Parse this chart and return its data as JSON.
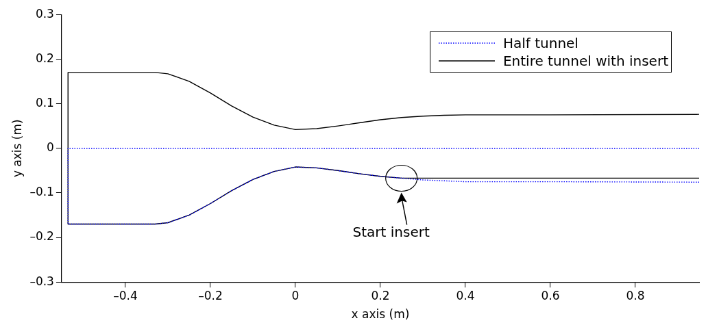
{
  "chart_data": {
    "type": "line",
    "xlabel": "x axis (m)",
    "ylabel": "y axis (m)",
    "xlim": [
      -0.55,
      0.95
    ],
    "ylim": [
      -0.3,
      0.3
    ],
    "xticks": [
      {
        "value": -0.4,
        "label": "–0.4"
      },
      {
        "value": -0.2,
        "label": "–0.2"
      },
      0,
      0.2,
      0.4,
      0.6,
      0.8
    ],
    "yticks": [
      {
        "value": -0.3,
        "label": "–0.3"
      },
      {
        "value": -0.2,
        "label": "–0.2"
      },
      {
        "value": -0.1,
        "label": "–0.1"
      },
      0,
      0.1,
      0.2,
      0.3
    ],
    "grid": false,
    "legend": "top right",
    "marker": "none",
    "annotations": [
      "Start insert"
    ],
    "series": [
      {
        "name": "Half tunnel",
        "color": "#0000ff",
        "line_style": "dotted",
        "x": [
          0.95,
          -0.535,
          -0.535,
          -0.33,
          -0.3,
          -0.25,
          -0.2,
          -0.15,
          -0.1,
          -0.05,
          0,
          0.05,
          0.1,
          0.15,
          0.2,
          0.25,
          0.3,
          0.35,
          0.4,
          0.6,
          0.95
        ],
        "values": [
          0,
          0,
          -0.17,
          -0.17,
          -0.167,
          -0.15,
          -0.124,
          -0.095,
          -0.07,
          -0.052,
          -0.042,
          -0.044,
          -0.05,
          -0.057,
          -0.063,
          -0.067,
          -0.071,
          -0.073,
          -0.075,
          -0.075,
          -0.076
        ]
      },
      {
        "name": "Entire tunnel with insert",
        "color": "#000000",
        "line_style": "solid",
        "x": [
          0.95,
          0.6,
          0.4,
          0.35,
          0.3,
          0.25,
          0.2,
          0.15,
          0.1,
          0.05,
          0,
          -0.05,
          -0.1,
          -0.15,
          -0.2,
          -0.25,
          -0.3,
          -0.33,
          -0.535,
          -0.535,
          -0.33,
          -0.3,
          -0.25,
          -0.2,
          -0.15,
          -0.1,
          -0.05,
          0,
          0.05,
          0.1,
          0.15,
          0.2,
          0.25,
          0.95
        ],
        "values": [
          0.076,
          0.075,
          0.075,
          0.074,
          0.072,
          0.069,
          0.064,
          0.057,
          0.05,
          0.044,
          0.042,
          0.052,
          0.07,
          0.095,
          0.124,
          0.15,
          0.167,
          0.17,
          0.17,
          -0.17,
          -0.17,
          -0.167,
          -0.15,
          -0.124,
          -0.095,
          -0.07,
          -0.052,
          -0.042,
          -0.044,
          -0.05,
          -0.057,
          -0.063,
          -0.067,
          -0.067
        ]
      }
    ]
  }
}
